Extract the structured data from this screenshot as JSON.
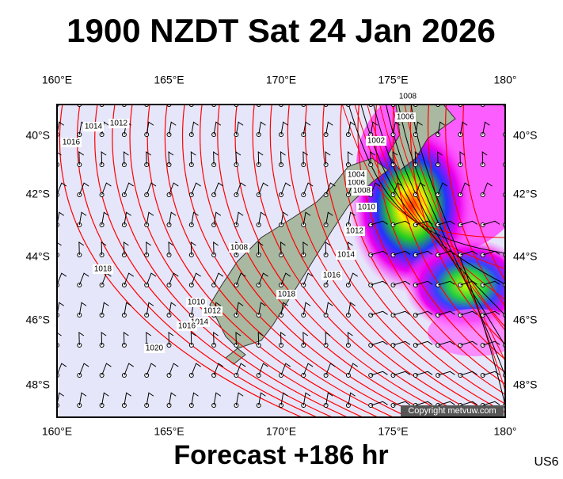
{
  "header": {
    "title": "1900 NZDT Sat 24 Jan 2026"
  },
  "footer": {
    "forecast": "Forecast +186 hr",
    "code": "US6",
    "copyright": "Copyright metvuw.com"
  },
  "axes": {
    "longitude": [
      "160°E",
      "165°E",
      "170°E",
      "175°E",
      "180°"
    ],
    "latitude": [
      "40°S",
      "42°S",
      "44°S",
      "46°S",
      "48°S"
    ]
  },
  "isobar_labels": [
    "1016",
    "1014",
    "1012",
    "1018",
    "1020",
    "1010",
    "1012",
    "1014",
    "1016",
    "1008",
    "1018",
    "1016",
    "1014",
    "1012",
    "1010",
    "1008",
    "1006",
    "1004",
    "1002",
    "1006",
    "1008"
  ]
}
